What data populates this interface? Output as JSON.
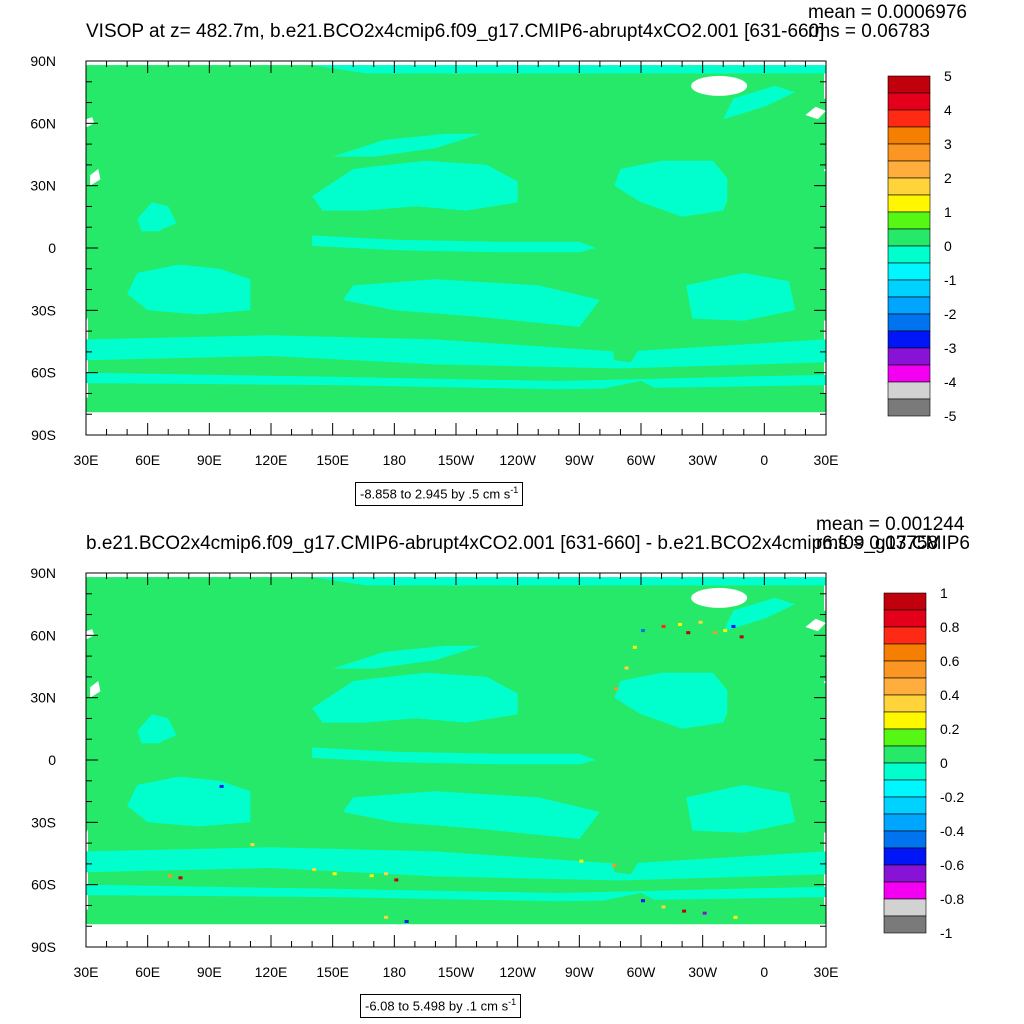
{
  "chart_data": [
    {
      "type": "heatmap",
      "title": "VISOP at z= 482.7m, b.e21.BCO2x4cmip6.f09_g17.CMIP6-abrupt4xCO2.001 [631-660]",
      "stats": {
        "mean_label": "mean = 0.0006976",
        "rms_label": "rms = 0.06783"
      },
      "x_ticks": [
        "30E",
        "60E",
        "90E",
        "120E",
        "150E",
        "180",
        "150W",
        "120W",
        "90W",
        "60W",
        "30W",
        "0",
        "30E"
      ],
      "y_ticks": [
        "90N",
        "60N",
        "30N",
        "0",
        "30S",
        "60S",
        "90S"
      ],
      "xlim": [
        30,
        390
      ],
      "ylim": [
        -90,
        90
      ],
      "colorbar": {
        "labels": [
          "5",
          "4",
          "3",
          "2",
          "1",
          "0",
          "-1",
          "-2",
          "-3",
          "-4",
          "-5"
        ],
        "levels": [
          5,
          4.5,
          4,
          3.5,
          3,
          2.5,
          2,
          1.5,
          1,
          0.5,
          0,
          -0.5,
          -1,
          -1.5,
          -2,
          -2.5,
          -3,
          -3.5,
          -4,
          -4.5,
          -5
        ],
        "colors": [
          "#c0000c",
          "#e4001b",
          "#ff2a14",
          "#f57f00",
          "#fb9625",
          "#ffad3d",
          "#ffd33a",
          "#fff700",
          "#56f615",
          "#26e96a",
          "#00ffcc",
          "#00f7ff",
          "#00d2ff",
          "#00a5ff",
          "#0074ee",
          "#0016f6",
          "#8813d7",
          "#f300f3",
          "#d2d2d2",
          "#7a7a7a"
        ]
      },
      "range_label": "-8.858 to 2.945 by .5 cm s",
      "range_unit_exp": "-1",
      "description": "ocean field near zero everywhere; weak negative (cyan) bands in subtropical gyres, equatorial Pacific and Southern Ocean"
    },
    {
      "type": "heatmap",
      "title": "b.e21.BCO2x4cmip6.f09_g17.CMIP6-abrupt4xCO2.001 [631-660] - b.e21.BCO2x4cmip6.f09_g17.CMIP6",
      "stats": {
        "mean_label": "mean = 0.001244",
        "rms_label": "rms = 0.03758"
      },
      "x_ticks": [
        "30E",
        "60E",
        "90E",
        "120E",
        "150E",
        "180",
        "150W",
        "120W",
        "90W",
        "60W",
        "30W",
        "0",
        "30E"
      ],
      "y_ticks": [
        "90N",
        "60N",
        "30N",
        "0",
        "30S",
        "60S",
        "90S"
      ],
      "xlim": [
        30,
        390
      ],
      "ylim": [
        -90,
        90
      ],
      "colorbar": {
        "labels": [
          "1",
          "0.8",
          "0.6",
          "0.4",
          "0.2",
          "0",
          "-0.2",
          "-0.4",
          "-0.6",
          "-0.8",
          "-1"
        ],
        "levels": [
          1,
          0.9,
          0.8,
          0.7,
          0.6,
          0.5,
          0.4,
          0.3,
          0.2,
          0.1,
          0,
          -0.1,
          -0.2,
          -0.3,
          -0.4,
          -0.5,
          -0.6,
          -0.7,
          -0.8,
          -0.9,
          -1
        ],
        "colors": [
          "#c0000c",
          "#e4001b",
          "#ff2a14",
          "#f57f00",
          "#fb9625",
          "#ffad3d",
          "#ffd33a",
          "#fff700",
          "#56f615",
          "#26e96a",
          "#00ffcc",
          "#00f7ff",
          "#00d2ff",
          "#00a5ff",
          "#0074ee",
          "#0016f6",
          "#8813d7",
          "#f300f3",
          "#d2d2d2",
          "#7a7a7a"
        ]
      },
      "range_label": "-6.08 to 5.498 by .1 cm s",
      "range_unit_exp": "-1",
      "description": "difference field near zero; small-scale positive/negative extremes in the North Atlantic and Southern Ocean"
    }
  ]
}
